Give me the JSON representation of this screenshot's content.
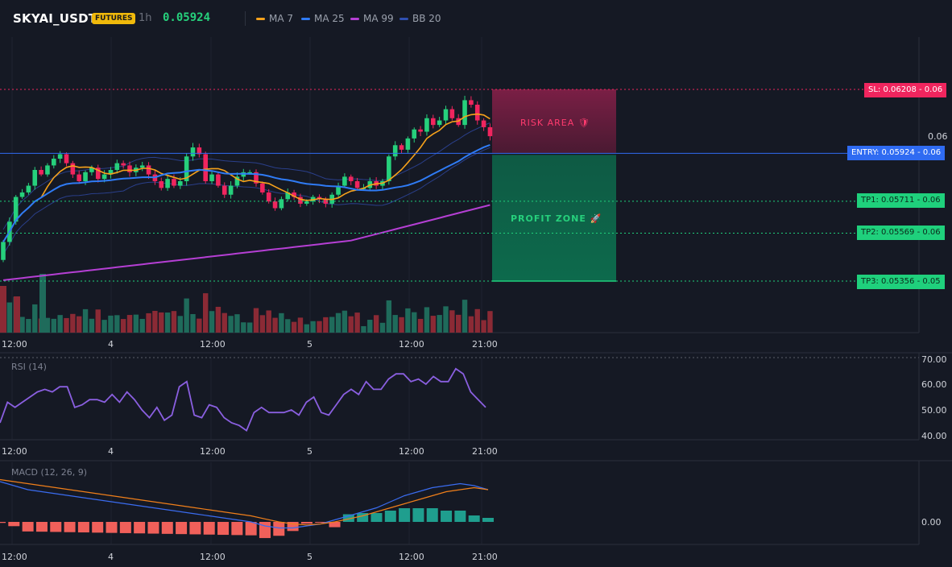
{
  "header": {
    "symbol": "SKYAI_USDT",
    "badge": "FUTURES",
    "interval": "1h",
    "price": "0.05924",
    "legend": [
      {
        "label": "MA 7",
        "color": "#f7a21b"
      },
      {
        "label": "MA 25",
        "color": "#2f7bf5"
      },
      {
        "label": "MA 99",
        "color": "#b53fd4"
      },
      {
        "label": "BB 20",
        "color": "#2f4fb0"
      }
    ]
  },
  "colors": {
    "up": "#26d07c",
    "down": "#f0255e",
    "vol_up": "#1f6b5b",
    "vol_down": "#8b2a35",
    "entry": "#2f6bf2",
    "sl": "#f0255e",
    "tp": "#1fd07c",
    "rsi": "#8a5fe0",
    "macd": "#3a6cf0",
    "signal": "#f07f1a",
    "hist_pos": "#1f9e8e",
    "hist_neg": "#f0605a"
  },
  "levels": {
    "sl": {
      "label": "SL: 0.06208",
      "value": 0.06208,
      "axis": "0.06"
    },
    "entry": {
      "label": "ENTRY: 0.05924",
      "value": 0.05924,
      "axis": "0.06"
    },
    "tp1": {
      "label": "TP1: 0.05711",
      "value": 0.05711,
      "axis": "0.06"
    },
    "tp2": {
      "label": "TP2: 0.05569",
      "value": 0.05569,
      "axis": "0.06"
    },
    "tp3": {
      "label": "TP3: 0.05356",
      "value": 0.05356,
      "axis": "0.05"
    }
  },
  "zones": {
    "risk": "RISK AREA 🛡",
    "profit": "PROFIT ZONE 🚀"
  },
  "main_axis": {
    "tick": "0.06"
  },
  "time_labels": [
    "12:00",
    "4",
    "12:00",
    "5",
    "12:00",
    "21:00"
  ],
  "rsi": {
    "title": "RSI (14)",
    "ticks": [
      "70.00",
      "60.00",
      "50.00",
      "40.00"
    ],
    "ylim": [
      40,
      70
    ]
  },
  "macd": {
    "title": "MACD (12, 26, 9)",
    "tick": "0.00"
  },
  "chart_data": {
    "type": "candlestick",
    "x_labels": [
      "12:00",
      "4",
      "12:00",
      "5",
      "12:00",
      "21:00"
    ],
    "ohlc_note": "",
    "close": [
      0.0553,
      0.0562,
      0.0573,
      0.0575,
      0.0578,
      0.0585,
      0.0583,
      0.0587,
      0.059,
      0.0592,
      0.0588,
      0.0583,
      0.058,
      0.0584,
      0.0586,
      0.0581,
      0.0583,
      0.0585,
      0.0588,
      0.0587,
      0.0584,
      0.0586,
      0.0587,
      0.0583,
      0.058,
      0.0577,
      0.0581,
      0.0578,
      0.058,
      0.0591,
      0.0595,
      0.0592,
      0.058,
      0.0583,
      0.0578,
      0.0574,
      0.0578,
      0.0582,
      0.0584,
      0.0584,
      0.0579,
      0.0575,
      0.0571,
      0.0568,
      0.0572,
      0.0575,
      0.0573,
      0.057,
      0.0571,
      0.0573,
      0.0572,
      0.057,
      0.0574,
      0.0578,
      0.0582,
      0.058,
      0.0577,
      0.0577,
      0.058,
      0.0578,
      0.058,
      0.0591,
      0.0596,
      0.0594,
      0.0599,
      0.0603,
      0.0602,
      0.0608,
      0.0605,
      0.0607,
      0.0612,
      0.0608,
      0.0605,
      0.0616,
      0.0614,
      0.0607,
      0.0604,
      0.06
    ],
    "rsi_values": [
      45,
      53,
      51,
      53,
      55,
      57,
      58,
      57,
      59,
      59,
      51,
      52,
      54,
      54,
      53,
      56,
      53,
      57,
      54,
      50,
      47,
      51,
      46,
      48,
      59,
      61,
      48,
      47,
      52,
      51,
      47,
      45,
      44,
      42,
      49,
      51,
      49,
      49,
      49,
      50,
      48,
      53,
      55,
      49,
      48,
      52,
      56,
      58,
      56,
      61,
      58,
      58,
      62,
      64,
      64,
      61,
      62,
      60,
      63,
      61,
      61,
      66,
      64,
      57,
      54,
      51
    ],
    "macd_values": [
      0.0004,
      0.00036,
      0.00032,
      0.0003,
      0.00028,
      0.00026,
      0.00024,
      0.00022,
      0.0002,
      0.00018,
      0.00016,
      0.00014,
      0.00012,
      0.0001,
      8e-05,
      6e-05,
      4e-05,
      2e-05,
      0.0,
      -4e-05,
      -6e-05,
      -6e-05,
      -4e-05,
      -2e-05,
      2e-05,
      6e-05,
      0.0001,
      0.00014,
      0.0002,
      0.00026,
      0.0003,
      0.00034,
      0.00036,
      0.00038,
      0.00036,
      0.00032
    ],
    "signal_values": [
      0.00042,
      0.0004,
      0.00038,
      0.00036,
      0.00034,
      0.00032,
      0.0003,
      0.00028,
      0.00026,
      0.00024,
      0.00022,
      0.0002,
      0.00018,
      0.00016,
      0.00014,
      0.00012,
      0.0001,
      8e-05,
      6e-05,
      3e-05,
      0.0,
      -2e-05,
      -3e-05,
      -2e-05,
      0.0,
      3e-05,
      6e-05,
      0.0001,
      0.00014,
      0.00018,
      0.00022,
      0.00026,
      0.0003,
      0.00032,
      0.00034,
      0.00032
    ]
  }
}
